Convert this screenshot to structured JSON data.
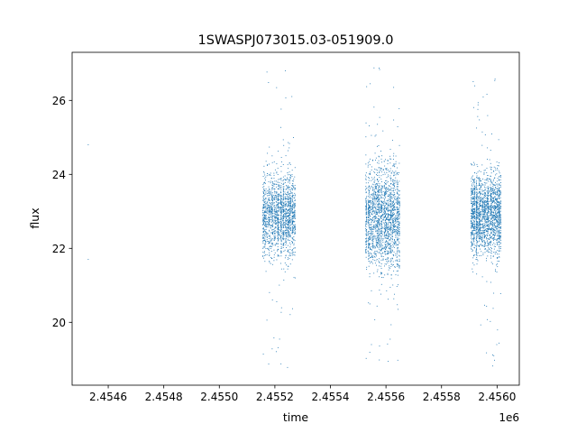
{
  "chart_data": {
    "type": "scatter",
    "title": "1SWASPJ073015.03-051909.0",
    "xlabel": "time",
    "ylabel": "flux",
    "x_offset_label": "1e6",
    "xlim": [
      2454470,
      2456080
    ],
    "ylim": [
      18.3,
      27.3
    ],
    "xticks": [
      2454600,
      2454800,
      2455000,
      2455200,
      2455400,
      2455600,
      2455800,
      2456000
    ],
    "xtick_labels": [
      "2.4546",
      "2.4548",
      "2.4550",
      "2.4552",
      "2.4554",
      "2.4556",
      "2.4558",
      "2.4560"
    ],
    "yticks": [
      20,
      22,
      24,
      26
    ],
    "ytick_labels": [
      "20",
      "22",
      "24",
      "26"
    ],
    "grid": false,
    "marker_color": "#1f77b4",
    "series": [
      {
        "observing_seasons": [
          {
            "x_start": 2455155,
            "x_end": 2455275,
            "y_center": 22.9,
            "y_spread": 0.55,
            "y_min": 18.7,
            "y_max": 26.9
          },
          {
            "x_start": 2455525,
            "x_end": 2455650,
            "y_center": 22.8,
            "y_spread": 0.7,
            "y_min": 18.8,
            "y_max": 26.9
          },
          {
            "x_start": 2455905,
            "x_end": 2456015,
            "y_center": 22.9,
            "y_spread": 0.55,
            "y_min": 18.8,
            "y_max": 26.6
          }
        ],
        "isolated_points": [
          {
            "x": 2454528,
            "y": 24.8
          },
          {
            "x": 2454528,
            "y": 21.7
          }
        ]
      }
    ]
  }
}
